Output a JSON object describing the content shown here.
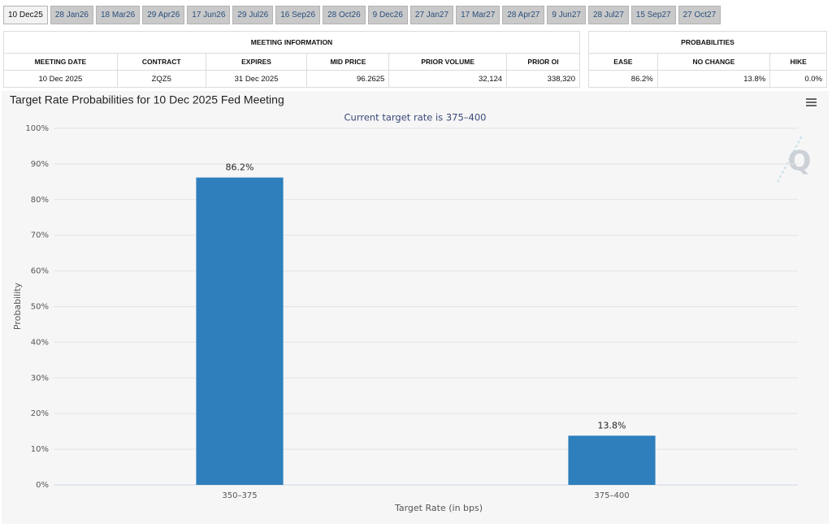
{
  "tabs": [
    "10 Dec25",
    "28 Jan26",
    "18 Mar26",
    "29 Apr26",
    "17 Jun26",
    "29 Jul26",
    "16 Sep26",
    "28 Oct26",
    "9 Dec26",
    "27 Jan27",
    "17 Mar27",
    "28 Apr27",
    "9 Jun27",
    "28 Jul27",
    "15 Sep27",
    "27 Oct27"
  ],
  "meeting_information": {
    "title": "MEETING INFORMATION",
    "headers": [
      "MEETING DATE",
      "CONTRACT",
      "EXPIRES",
      "MID PRICE",
      "PRIOR VOLUME",
      "PRIOR OI"
    ],
    "rows": [
      [
        "10 Dec 2025",
        "ZQZ5",
        "31 Dec 2025",
        "96.2625",
        "32,124",
        "338,320"
      ]
    ]
  },
  "probabilities": {
    "title": "PROBABILITIES",
    "headers": [
      "EASE",
      "NO CHANGE",
      "HIKE"
    ],
    "rows": [
      [
        "86.2%",
        "13.8%",
        "0.0%"
      ]
    ]
  },
  "chart_data": {
    "type": "bar",
    "title": "Target Rate Probabilities for 10 Dec 2025 Fed Meeting",
    "subtitle": "Current target rate is 375–400",
    "x_label": "Target Rate (in bps)",
    "y_label": "Probability",
    "categories": [
      "350–375",
      "375–400"
    ],
    "values": [
      86.2,
      13.8
    ],
    "value_labels": [
      "86.2%",
      "13.8%"
    ],
    "color": "#2e7fbc",
    "ylim": [
      0,
      100
    ],
    "yticks": [
      {
        "value": 0,
        "label": "0%"
      },
      {
        "value": 10,
        "label": "10%"
      },
      {
        "value": 20,
        "label": "20%"
      },
      {
        "value": 30,
        "label": "30%"
      },
      {
        "value": 40,
        "label": "40%"
      },
      {
        "value": 50,
        "label": "50%"
      },
      {
        "value": 60,
        "label": "60%"
      },
      {
        "value": 70,
        "label": "70%"
      },
      {
        "value": 80,
        "label": "80%"
      },
      {
        "value": 90,
        "label": "90%"
      },
      {
        "value": 100,
        "label": "100%"
      }
    ],
    "grid": true
  }
}
